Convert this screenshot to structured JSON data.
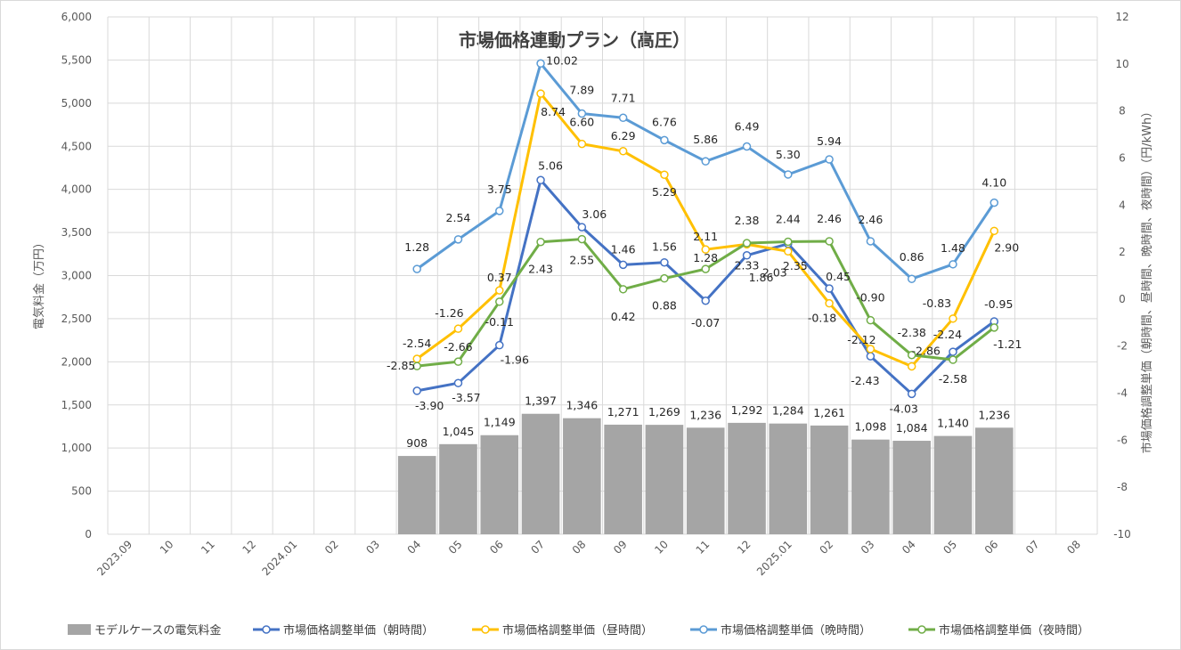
{
  "chart_data": {
    "type": "bar+line",
    "title": "市場価格連動プラン（高圧）",
    "categories": [
      "2023.09",
      "10",
      "11",
      "12",
      "2024.01",
      "02",
      "03",
      "04",
      "05",
      "06",
      "07",
      "08",
      "09",
      "10",
      "11",
      "12",
      "2025.01",
      "02",
      "03",
      "04",
      "05",
      "06",
      "07",
      "08"
    ],
    "y_left": {
      "label": "電気料金（万円）",
      "min": 0,
      "max": 6000,
      "step": 500,
      "ticks": [
        "0",
        "500",
        "1,000",
        "1,500",
        "2,000",
        "2,500",
        "3,000",
        "3,500",
        "4,000",
        "4,500",
        "5,000",
        "5,500",
        "6,000"
      ]
    },
    "y_right": {
      "label": "市場価格調整単価（朝時間、昼時間、晩時間、夜時間）（円/kWh）",
      "min": -10,
      "max": 12,
      "step": 2,
      "ticks": [
        "-10",
        "-8",
        "-6",
        "-4",
        "-2",
        "0",
        "2",
        "4",
        "6",
        "8",
        "10",
        "12"
      ]
    },
    "bars": {
      "name": "モデルケースの電気料金",
      "color": "#a5a5a5",
      "values": [
        null,
        null,
        null,
        null,
        null,
        null,
        null,
        908,
        1045,
        1149,
        1397,
        1346,
        1271,
        1269,
        1236,
        1292,
        1284,
        1261,
        1098,
        1084,
        1140,
        1236,
        null,
        null
      ],
      "labels": [
        null,
        null,
        null,
        null,
        null,
        null,
        null,
        "908",
        "1,045",
        "1,149",
        "1,397",
        "1,346",
        "1,271",
        "1,269",
        "1,236",
        "1,292",
        "1,284",
        "1,261",
        "1,098",
        "1,084",
        "1,140",
        "1,236",
        null,
        null
      ]
    },
    "series": [
      {
        "name": "市場価格調整単価（朝時間）",
        "color": "#4472c4",
        "values": [
          null,
          null,
          null,
          null,
          null,
          null,
          null,
          -3.9,
          -3.57,
          -1.96,
          5.06,
          3.06,
          1.46,
          1.56,
          -0.07,
          1.86,
          2.35,
          0.45,
          -2.43,
          -4.03,
          -2.24,
          -0.95,
          null,
          null
        ],
        "labels": [
          null,
          null,
          null,
          null,
          null,
          null,
          null,
          "-3.90",
          "-3.57",
          "-1.96",
          "5.06",
          "3.06",
          "1.46",
          "1.56",
          "-0.07",
          "1.86",
          "2.35",
          "0.45",
          "-2.43",
          "-4.03",
          "-2.24",
          "-0.95",
          null,
          null
        ]
      },
      {
        "name": "市場価格調整単価（昼時間）",
        "color": "#ffc000",
        "values": [
          null,
          null,
          null,
          null,
          null,
          null,
          null,
          -2.54,
          -1.26,
          0.37,
          8.74,
          6.6,
          6.29,
          5.29,
          2.11,
          2.33,
          2.03,
          -0.18,
          -2.12,
          -2.86,
          -0.83,
          2.9,
          null,
          null
        ],
        "labels": [
          null,
          null,
          null,
          null,
          null,
          null,
          null,
          "-2.54",
          "-1.26",
          "0.37",
          "8.74",
          "6.60",
          "6.29",
          "5.29",
          "2.11",
          "2.33",
          "2.03",
          "-0.18",
          "-2.12",
          "-2.86",
          "-0.83",
          "2.90",
          null,
          null
        ]
      },
      {
        "name": "市場価格調整単価（晩時間）",
        "color": "#5b9bd5",
        "values": [
          null,
          null,
          null,
          null,
          null,
          null,
          null,
          1.28,
          2.54,
          3.75,
          10.02,
          7.89,
          7.71,
          6.76,
          5.86,
          6.49,
          5.3,
          5.94,
          2.46,
          0.86,
          1.48,
          4.1,
          null,
          null
        ],
        "labels": [
          null,
          null,
          null,
          null,
          null,
          null,
          null,
          "1.28",
          "2.54",
          "3.75",
          "10.02",
          "7.89",
          "7.71",
          "6.76",
          "5.86",
          "6.49",
          "5.30",
          "5.94",
          "2.46",
          "0.86",
          "1.48",
          "4.10",
          null,
          null
        ]
      },
      {
        "name": "市場価格調整単価（夜時間）",
        "color": "#70ad47",
        "values": [
          null,
          null,
          null,
          null,
          null,
          null,
          null,
          -2.85,
          -2.66,
          -0.11,
          2.43,
          2.55,
          0.42,
          0.88,
          1.28,
          2.38,
          2.44,
          2.46,
          -0.9,
          -2.38,
          -2.58,
          -1.21,
          null,
          null
        ],
        "labels": [
          null,
          null,
          null,
          null,
          null,
          null,
          null,
          "-2.85",
          "-2.66",
          "-0.11",
          "2.43",
          "2.55",
          "0.42",
          "0.88",
          "1.28",
          "2.38",
          "2.44",
          "2.46",
          "-0.90",
          "-2.38",
          "-2.58",
          "-1.21",
          null,
          null
        ]
      }
    ],
    "grid": true,
    "legend_position": "bottom"
  }
}
